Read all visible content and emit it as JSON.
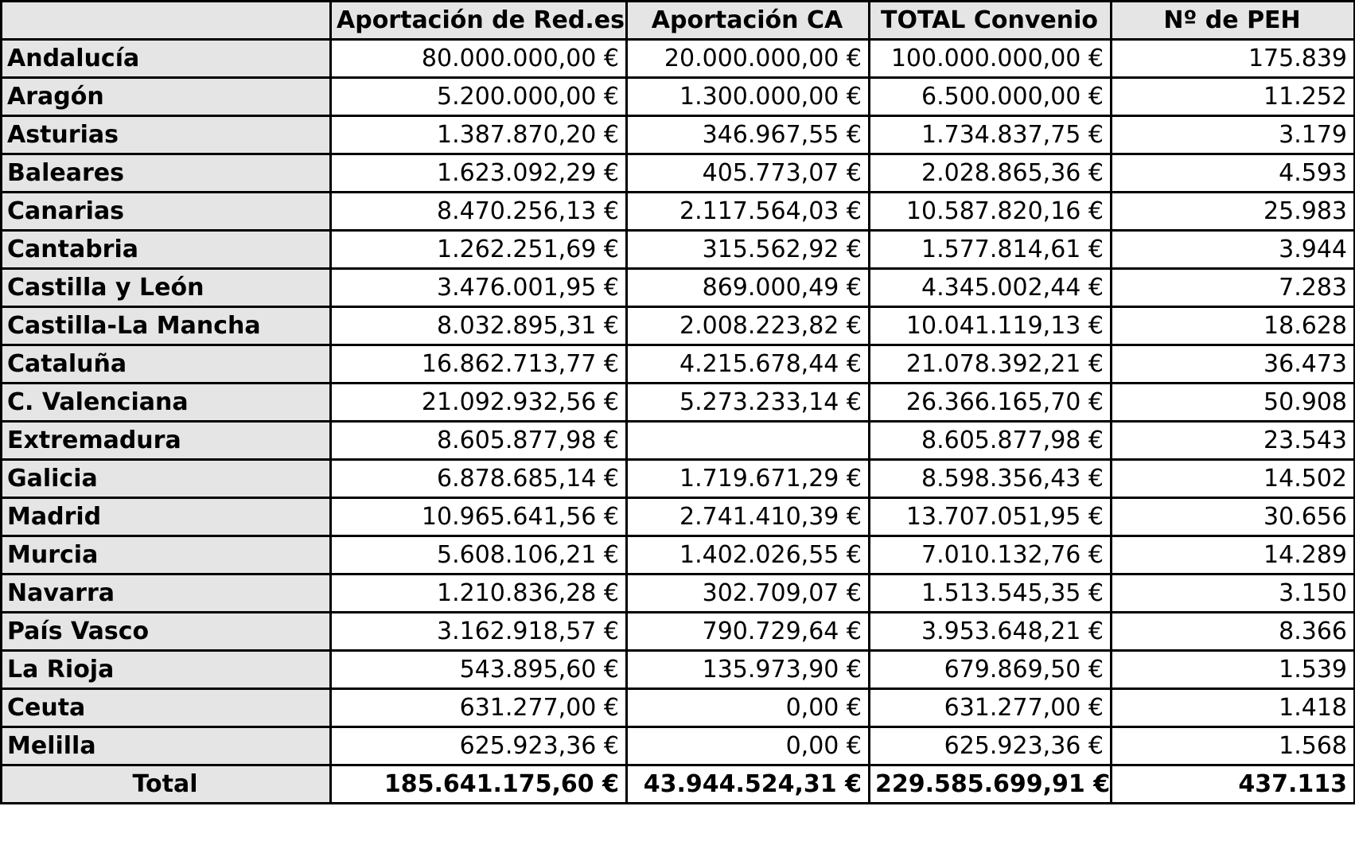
{
  "table": {
    "headers": [
      "",
      "Aportación de Red.es",
      "Aportación CA",
      "TOTAL Convenio",
      "Nº de PEH"
    ],
    "rows": [
      {
        "region": "Andalucía",
        "red_es": "80.000.000,00 €",
        "ca": "20.000.000,00 €",
        "total": "100.000.000,00 €",
        "peh": "175.839"
      },
      {
        "region": "Aragón",
        "red_es": "5.200.000,00 €",
        "ca": "1.300.000,00 €",
        "total": "6.500.000,00 €",
        "peh": "11.252"
      },
      {
        "region": "Asturias",
        "red_es": "1.387.870,20 €",
        "ca": "346.967,55 €",
        "total": "1.734.837,75 €",
        "peh": "3.179"
      },
      {
        "region": "Baleares",
        "red_es": "1.623.092,29 €",
        "ca": "405.773,07 €",
        "total": "2.028.865,36 €",
        "peh": "4.593"
      },
      {
        "region": "Canarias",
        "red_es": "8.470.256,13 €",
        "ca": "2.117.564,03 €",
        "total": "10.587.820,16 €",
        "peh": "25.983"
      },
      {
        "region": "Cantabria",
        "red_es": "1.262.251,69 €",
        "ca": "315.562,92 €",
        "total": "1.577.814,61 €",
        "peh": "3.944"
      },
      {
        "region": "Castilla y León",
        "red_es": "3.476.001,95 €",
        "ca": "869.000,49 €",
        "total": "4.345.002,44 €",
        "peh": "7.283"
      },
      {
        "region": "Castilla-La Mancha",
        "red_es": "8.032.895,31 €",
        "ca": "2.008.223,82 €",
        "total": "10.041.119,13 €",
        "peh": "18.628"
      },
      {
        "region": "Cataluña",
        "red_es": "16.862.713,77 €",
        "ca": "4.215.678,44 €",
        "total": "21.078.392,21 €",
        "peh": "36.473"
      },
      {
        "region": "C. Valenciana",
        "red_es": "21.092.932,56 €",
        "ca": "5.273.233,14 €",
        "total": "26.366.165,70 €",
        "peh": "50.908"
      },
      {
        "region": "Extremadura",
        "red_es": "8.605.877,98 €",
        "ca": "",
        "total": "8.605.877,98 €",
        "peh": "23.543"
      },
      {
        "region": "Galicia",
        "red_es": "6.878.685,14 €",
        "ca": "1.719.671,29 €",
        "total": "8.598.356,43 €",
        "peh": "14.502"
      },
      {
        "region": "Madrid",
        "red_es": "10.965.641,56 €",
        "ca": "2.741.410,39 €",
        "total": "13.707.051,95 €",
        "peh": "30.656"
      },
      {
        "region": "Murcia",
        "red_es": "5.608.106,21 €",
        "ca": "1.402.026,55 €",
        "total": "7.010.132,76 €",
        "peh": "14.289"
      },
      {
        "region": "Navarra",
        "red_es": "1.210.836,28 €",
        "ca": "302.709,07 €",
        "total": "1.513.545,35 €",
        "peh": "3.150"
      },
      {
        "region": "País Vasco",
        "red_es": "3.162.918,57 €",
        "ca": "790.729,64 €",
        "total": "3.953.648,21 €",
        "peh": "8.366"
      },
      {
        "region": "La Rioja",
        "red_es": "543.895,60 €",
        "ca": "135.973,90 €",
        "total": "679.869,50 €",
        "peh": "1.539"
      },
      {
        "region": "Ceuta",
        "red_es": "631.277,00 €",
        "ca": "0,00 €",
        "total": "631.277,00 €",
        "peh": "1.418"
      },
      {
        "region": "Melilla",
        "red_es": "625.923,36 €",
        "ca": "0,00 €",
        "total": "625.923,36 €",
        "peh": "1.568"
      }
    ],
    "total": {
      "label": "Total",
      "red_es": "185.641.175,60 €",
      "ca": "43.944.524,31 €",
      "total": "229.585.699,91 €",
      "peh": "437.113"
    }
  },
  "colors": {
    "header_fill": "#e5e5e5",
    "border": "#000000",
    "cell_fill": "#ffffff"
  }
}
